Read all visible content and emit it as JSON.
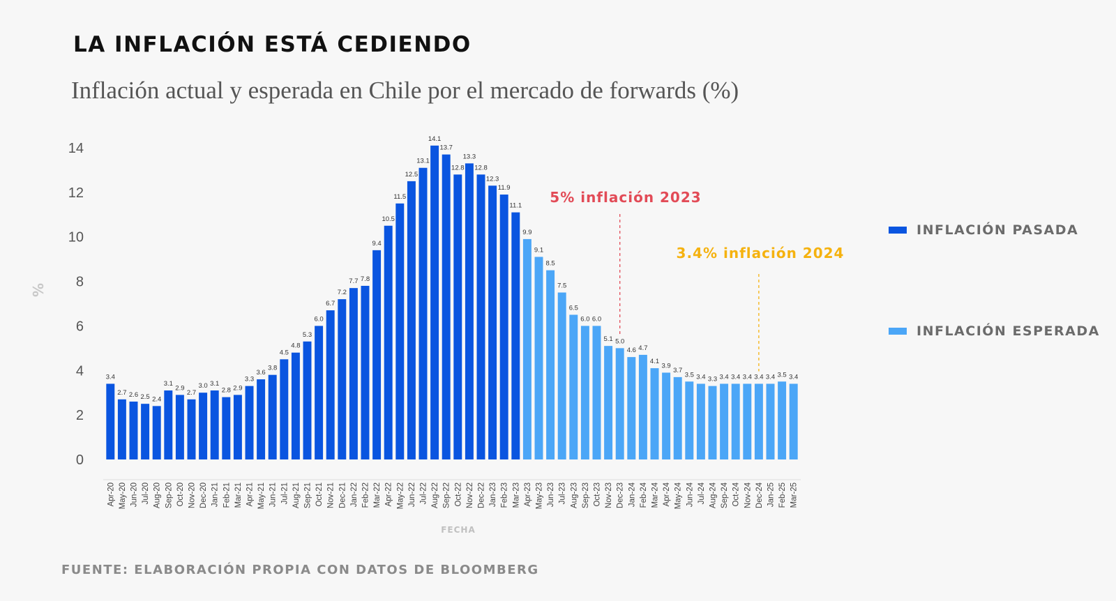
{
  "header": {
    "title": "LA INFLACIÓN ESTÁ CEDIENDO",
    "subtitle": "Inflación actual y esperada en Chile por el mercado de forwards (%)"
  },
  "footer": {
    "source": "FUENTE: ELABORACIÓN PROPIA CON DATOS DE BLOOMBERG"
  },
  "legend": [
    {
      "label": "INFLACIÓN PASADA",
      "color": "#0a55e0"
    },
    {
      "label": "INFLACIÓN ESPERADA",
      "color": "#4ba6f7"
    }
  ],
  "chart_data": {
    "type": "bar",
    "title": "",
    "xlabel": "FECHA",
    "ylabel": "%",
    "ylim": [
      0,
      14
    ],
    "yticks": [
      0,
      2,
      4,
      6,
      8,
      10,
      12,
      14
    ],
    "grid": false,
    "legend_position": "right",
    "categories": [
      "Apr-20",
      "May-20",
      "Jun-20",
      "Jul-20",
      "Aug-20",
      "Sep-20",
      "Oct-20",
      "Nov-20",
      "Dec-20",
      "Jan-21",
      "Feb-21",
      "Mar-21",
      "Apr-21",
      "May-21",
      "Jun-21",
      "Jul-21",
      "Aug-21",
      "Sep-21",
      "Oct-21",
      "Nov-21",
      "Dec-21",
      "Jan-22",
      "Feb-22",
      "Mar-22",
      "Apr-22",
      "May-22",
      "Jun-22",
      "Jul-22",
      "Aug-22",
      "Sep-22",
      "Oct-22",
      "Nov-22",
      "Dec-22",
      "Jan-23",
      "Feb-23",
      "Mar-23",
      "Apr-23",
      "May-23",
      "Jun-23",
      "Jul-23",
      "Aug-23",
      "Sep-23",
      "Oct-23",
      "Nov-23",
      "Dec-23",
      "Jan-24",
      "Feb-24",
      "Mar-24",
      "Apr-24",
      "May-24",
      "Jun-24",
      "Jul-24",
      "Aug-24",
      "Sep-24",
      "Oct-24",
      "Nov-24",
      "Dec-24",
      "Jan-25",
      "Feb-25",
      "Mar-25"
    ],
    "values": [
      3.4,
      2.7,
      2.6,
      2.5,
      2.4,
      3.1,
      2.9,
      2.7,
      3.0,
      3.1,
      2.8,
      2.9,
      3.3,
      3.6,
      3.8,
      4.5,
      4.8,
      5.3,
      6.0,
      6.7,
      7.2,
      7.7,
      7.8,
      9.4,
      10.5,
      11.5,
      12.5,
      13.1,
      14.1,
      13.7,
      12.8,
      13.3,
      12.8,
      12.3,
      11.9,
      11.1,
      9.9,
      9.1,
      8.5,
      7.5,
      6.5,
      6.0,
      6.0,
      5.1,
      5.0,
      4.6,
      4.7,
      4.1,
      3.9,
      3.7,
      3.5,
      3.4,
      3.3,
      3.4,
      3.4,
      3.4,
      3.4,
      3.4,
      3.5,
      3.4
    ],
    "series": [
      {
        "name": "INFLACIÓN PASADA",
        "from": "Apr-20",
        "to": "Mar-23",
        "color": "#0a55e0"
      },
      {
        "name": "INFLACIÓN ESPERADA",
        "from": "Apr-23",
        "to": "Mar-25",
        "color": "#4ba6f7"
      }
    ],
    "annotations": [
      {
        "text": "5% inflación  2023",
        "category": "Dec-23",
        "color": "#e24b57"
      },
      {
        "text": "3.4% inflación 2024",
        "category": "Dec-24",
        "color": "#f5b20f"
      }
    ]
  }
}
